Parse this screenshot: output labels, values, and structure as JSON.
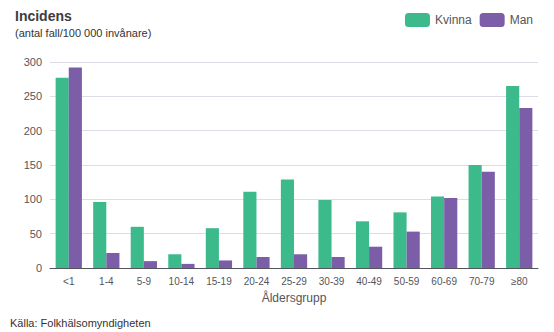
{
  "chart_data": {
    "type": "bar",
    "title": "Incidens",
    "subtitle": "(antal fall/100 000 invånare)",
    "xlabel": "Åldersgrupp",
    "categories": [
      "<1",
      "1-4",
      "5-9",
      "10-14",
      "15-19",
      "20-24",
      "25-29",
      "30-39",
      "40-49",
      "50-59",
      "60-69",
      "70-79",
      "≥80"
    ],
    "series": [
      {
        "name": "Kvinna",
        "color": "#3dba8c",
        "values": [
          277,
          96,
          60,
          20,
          58,
          111,
          129,
          99,
          68,
          81,
          104,
          150,
          265
        ]
      },
      {
        "name": "Man",
        "color": "#7b5ea7",
        "values": [
          292,
          22,
          10,
          6,
          11,
          16,
          20,
          16,
          31,
          53,
          102,
          140,
          233
        ]
      }
    ],
    "ylim": [
      0,
      300
    ],
    "yticks": [
      0,
      50,
      100,
      150,
      200,
      250,
      300
    ],
    "grid": true,
    "legend": "upper right",
    "annotations": [
      "Källa: Folkhälsomyndigheten"
    ]
  }
}
